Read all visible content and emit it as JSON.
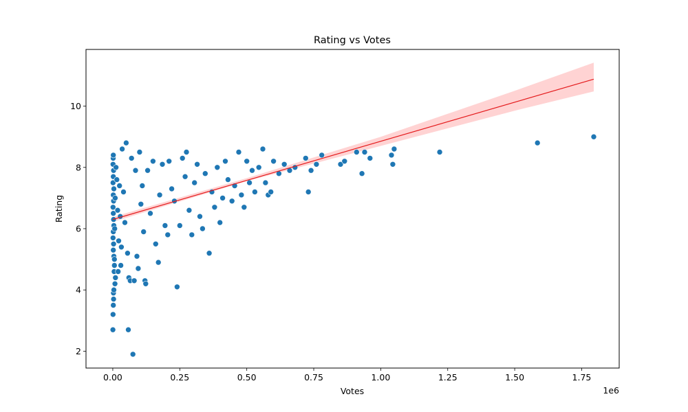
{
  "chart_data": {
    "type": "scatter",
    "title": "Rating vs Votes",
    "xlabel": "Votes",
    "ylabel": "Rating",
    "x_offset_label": "1e6",
    "xlim": [
      -100000,
      1890000
    ],
    "ylim": [
      1.45,
      11.85
    ],
    "x_ticks": [
      0,
      250000,
      500000,
      750000,
      1000000,
      1250000,
      1500000,
      1750000
    ],
    "x_tick_labels": [
      "0.00",
      "0.25",
      "0.50",
      "0.75",
      "1.00",
      "1.25",
      "1.50",
      "1.75"
    ],
    "y_ticks": [
      2,
      4,
      6,
      8,
      10
    ],
    "y_tick_labels": [
      "2",
      "4",
      "6",
      "8",
      "10"
    ],
    "grid": false,
    "colors": {
      "points": "#1f77b4",
      "regression": "#e41a1c",
      "band": "#ffc0c0"
    },
    "points": [
      [
        500,
        2.7
      ],
      [
        1000,
        3.2
      ],
      [
        2000,
        3.5
      ],
      [
        3000,
        3.7
      ],
      [
        2500,
        3.9
      ],
      [
        4000,
        4.0
      ],
      [
        8000,
        4.2
      ],
      [
        10000,
        4.4
      ],
      [
        5000,
        4.6
      ],
      [
        6000,
        4.8
      ],
      [
        20000,
        4.6
      ],
      [
        30000,
        4.8
      ],
      [
        1500,
        8.3
      ],
      [
        2000,
        8.4
      ],
      [
        1000,
        8.1
      ],
      [
        3000,
        7.9
      ],
      [
        2000,
        7.7
      ],
      [
        1000,
        7.5
      ],
      [
        4000,
        7.3
      ],
      [
        2000,
        7.1
      ],
      [
        3000,
        6.9
      ],
      [
        1000,
        6.7
      ],
      [
        2000,
        6.5
      ],
      [
        3000,
        6.3
      ],
      [
        4000,
        6.1
      ],
      [
        2000,
        5.9
      ],
      [
        1000,
        5.7
      ],
      [
        3000,
        5.5
      ],
      [
        2000,
        5.3
      ],
      [
        4000,
        5.1
      ],
      [
        6000,
        5.0
      ],
      [
        7000,
        6.0
      ],
      [
        9000,
        7.0
      ],
      [
        12000,
        8.0
      ],
      [
        15000,
        7.6
      ],
      [
        18000,
        6.6
      ],
      [
        22000,
        5.6
      ],
      [
        25000,
        7.4
      ],
      [
        28000,
        6.4
      ],
      [
        32000,
        5.4
      ],
      [
        35000,
        8.6
      ],
      [
        40000,
        7.2
      ],
      [
        45000,
        6.2
      ],
      [
        50000,
        8.8
      ],
      [
        55000,
        5.2
      ],
      [
        58000,
        2.7
      ],
      [
        60000,
        4.4
      ],
      [
        65000,
        4.3
      ],
      [
        70000,
        8.3
      ],
      [
        75000,
        1.9
      ],
      [
        80000,
        4.3
      ],
      [
        85000,
        7.9
      ],
      [
        90000,
        5.1
      ],
      [
        95000,
        4.7
      ],
      [
        100000,
        8.5
      ],
      [
        105000,
        6.8
      ],
      [
        110000,
        7.4
      ],
      [
        115000,
        5.9
      ],
      [
        120000,
        4.3
      ],
      [
        123000,
        4.2
      ],
      [
        130000,
        7.9
      ],
      [
        140000,
        6.5
      ],
      [
        150000,
        8.2
      ],
      [
        160000,
        5.5
      ],
      [
        170000,
        4.9
      ],
      [
        175000,
        7.1
      ],
      [
        185000,
        8.1
      ],
      [
        195000,
        6.1
      ],
      [
        205000,
        5.8
      ],
      [
        210000,
        8.2
      ],
      [
        220000,
        7.3
      ],
      [
        230000,
        6.9
      ],
      [
        240000,
        4.1
      ],
      [
        250000,
        6.1
      ],
      [
        260000,
        8.3
      ],
      [
        270000,
        7.7
      ],
      [
        275000,
        8.5
      ],
      [
        285000,
        6.6
      ],
      [
        295000,
        5.8
      ],
      [
        305000,
        7.5
      ],
      [
        315000,
        8.1
      ],
      [
        325000,
        6.4
      ],
      [
        335000,
        6.0
      ],
      [
        345000,
        7.8
      ],
      [
        360000,
        5.2
      ],
      [
        370000,
        7.2
      ],
      [
        380000,
        6.7
      ],
      [
        390000,
        8.0
      ],
      [
        400000,
        6.2
      ],
      [
        410000,
        7.0
      ],
      [
        420000,
        8.2
      ],
      [
        430000,
        7.6
      ],
      [
        445000,
        6.9
      ],
      [
        455000,
        7.4
      ],
      [
        470000,
        8.5
      ],
      [
        480000,
        7.1
      ],
      [
        490000,
        6.7
      ],
      [
        500000,
        8.2
      ],
      [
        510000,
        7.5
      ],
      [
        520000,
        7.9
      ],
      [
        530000,
        7.2
      ],
      [
        545000,
        8.0
      ],
      [
        560000,
        8.6
      ],
      [
        570000,
        7.5
      ],
      [
        580000,
        7.1
      ],
      [
        590000,
        7.2
      ],
      [
        600000,
        8.2
      ],
      [
        620000,
        7.8
      ],
      [
        640000,
        8.1
      ],
      [
        660000,
        7.9
      ],
      [
        680000,
        8.0
      ],
      [
        720000,
        8.3
      ],
      [
        730000,
        7.2
      ],
      [
        740000,
        7.9
      ],
      [
        760000,
        8.1
      ],
      [
        780000,
        8.4
      ],
      [
        850000,
        8.1
      ],
      [
        865000,
        8.2
      ],
      [
        910000,
        8.5
      ],
      [
        930000,
        7.8
      ],
      [
        940000,
        8.5
      ],
      [
        960000,
        8.3
      ],
      [
        1040000,
        8.4
      ],
      [
        1045000,
        8.1
      ],
      [
        1050000,
        8.6
      ],
      [
        1220000,
        8.5
      ],
      [
        1585000,
        8.8
      ],
      [
        1795000,
        9.0
      ]
    ],
    "regression": {
      "x_start": 0,
      "x_end": 1795000,
      "y_start": 6.3,
      "y_end": 10.88
    },
    "confidence_band": {
      "x": [
        0,
        500000,
        1000000,
        1500000,
        1795000
      ],
      "lower": [
        6.22,
        7.55,
        8.7,
        9.85,
        10.48
      ],
      "upper": [
        6.38,
        7.65,
        9.0,
        10.5,
        11.42
      ]
    }
  }
}
